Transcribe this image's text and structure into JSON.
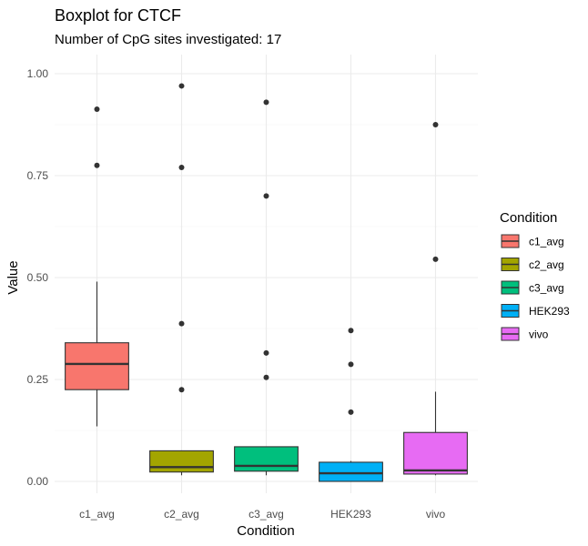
{
  "chart_data": {
    "type": "box",
    "title": "Boxplot for CTCF",
    "subtitle": "Number of CpG sites investigated: 17",
    "xlabel": "Condition",
    "ylabel": "Value",
    "ylim": [
      -0.06,
      1.05
    ],
    "y_ticks": [
      "0.00",
      "0.25",
      "0.50",
      "0.75",
      "1.00"
    ],
    "y_tick_values": [
      0,
      0.25,
      0.5,
      0.75,
      1.0
    ],
    "grid": true,
    "legend": {
      "title": "Condition",
      "placement": "right"
    },
    "categories": [
      "c1_avg",
      "c2_avg",
      "c3_avg",
      "HEK293",
      "vivo"
    ],
    "series": [
      {
        "name": "c1_avg",
        "color": "#F8766D",
        "lower_whisker": 0.135,
        "q1": 0.225,
        "median": 0.288,
        "q3": 0.34,
        "upper_whisker": 0.49,
        "outliers": [
          0.775,
          0.913
        ]
      },
      {
        "name": "c2_avg",
        "color": "#A3A500",
        "lower_whisker": 0.015,
        "q1": 0.023,
        "median": 0.035,
        "q3": 0.075,
        "upper_whisker": 0.075,
        "outliers": [
          0.225,
          0.387,
          0.77,
          0.97
        ]
      },
      {
        "name": "c3_avg",
        "color": "#00BF7D",
        "lower_whisker": 0.015,
        "q1": 0.025,
        "median": 0.038,
        "q3": 0.085,
        "upper_whisker": 0.085,
        "outliers": [
          0.255,
          0.315,
          0.7,
          0.93
        ]
      },
      {
        "name": "HEK293",
        "color": "#00B0F6",
        "lower_whisker": 0.0,
        "q1": 0.0,
        "median": 0.02,
        "q3": 0.047,
        "upper_whisker": 0.05,
        "outliers": [
          0.17,
          0.287,
          0.37
        ]
      },
      {
        "name": "vivo",
        "color": "#E76BF3",
        "lower_whisker": 0.015,
        "q1": 0.018,
        "median": 0.027,
        "q3": 0.12,
        "upper_whisker": 0.22,
        "outliers": [
          0.545,
          0.875
        ]
      }
    ]
  }
}
